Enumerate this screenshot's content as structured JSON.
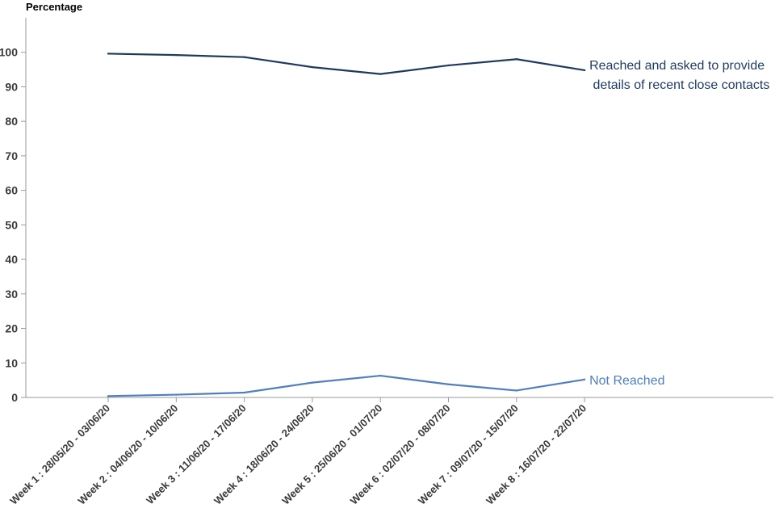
{
  "chart_data": {
    "type": "line",
    "title": "",
    "xlabel": "",
    "ylabel": "Percentage",
    "ylim": [
      0,
      110
    ],
    "yticks": [
      0,
      10,
      20,
      30,
      40,
      50,
      60,
      70,
      80,
      90,
      100
    ],
    "grid": false,
    "legend": "direct labels at line ends",
    "categories": [
      "Week 1 : 28/05/20 - 03/06/20",
      "Week 2 : 04/06/20 - 10/06/20",
      "Week 3 : 11/06/20 - 17/06/20",
      "Week 4 : 18/06/20 - 24/06/20",
      "Week 5 : 25/06/20 - 01/07/20",
      "Week 6 : 02/07/20 - 08/07/20",
      "Week 7 : 09/07/20 - 15/07/20",
      "Week 8 : 16/07/20 - 22/07/20"
    ],
    "series": [
      {
        "name": "Reached and asked to provide details of recent close contacts",
        "label_lines": [
          "Reached and asked to provide",
          " details of recent close contacts"
        ],
        "color": "#1f3a5f",
        "values": [
          99.6,
          99.2,
          98.6,
          95.7,
          93.7,
          96.2,
          98.0,
          94.8
        ]
      },
      {
        "name": "Not Reached",
        "label_lines": [
          "Not Reached"
        ],
        "color": "#4f7fbf",
        "values": [
          0.4,
          0.8,
          1.4,
          4.3,
          6.3,
          3.8,
          2.0,
          5.2
        ]
      }
    ]
  }
}
